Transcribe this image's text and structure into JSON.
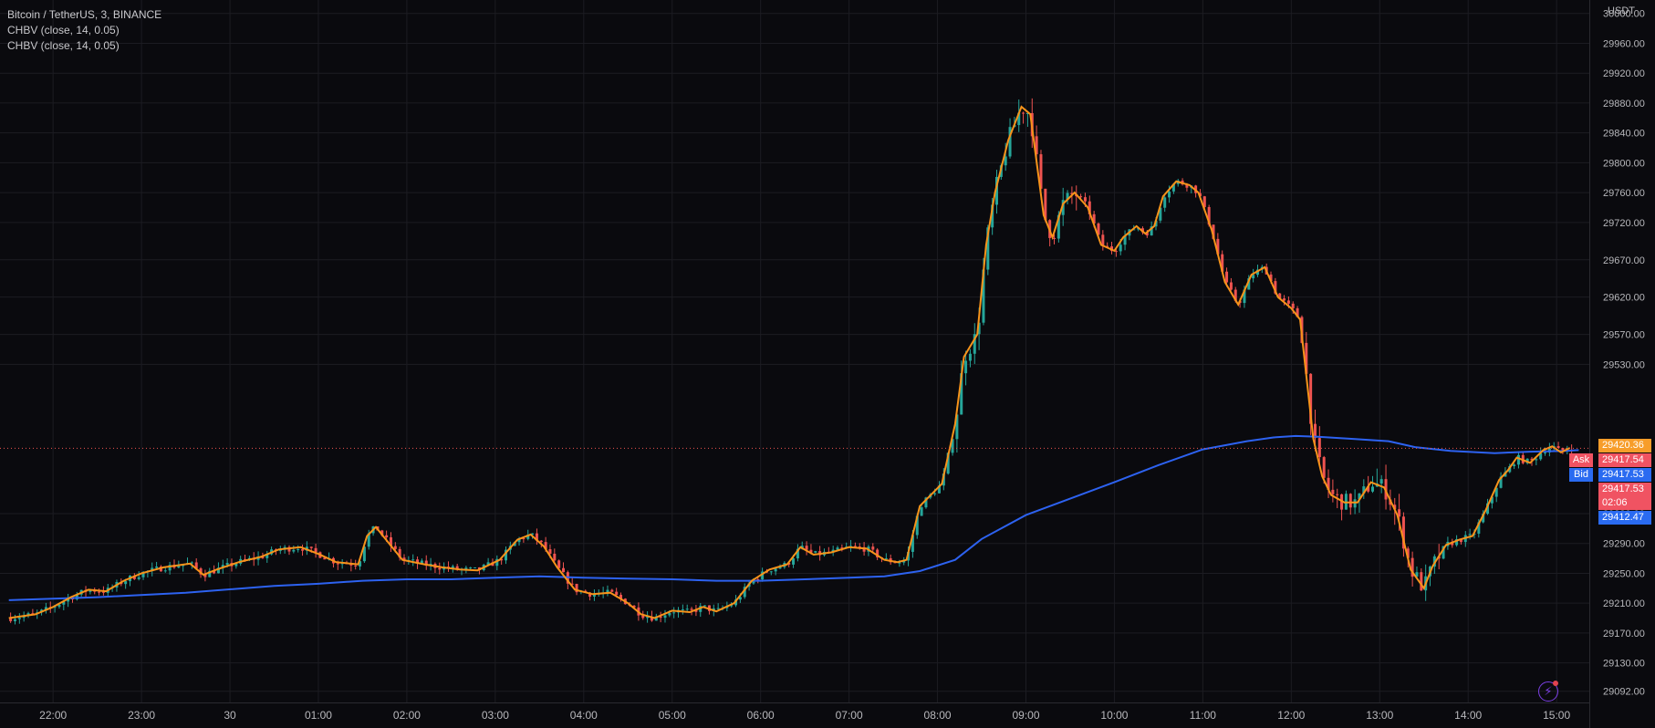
{
  "chart_data": {
    "type": "candlestick",
    "symbol": "Bitcoin / TetherUS, 3, BINANCE",
    "indicators": [
      "CHBV (close, 14, 0.05)",
      "CHBV (close, 14, 0.05)"
    ],
    "currency": "USDT",
    "y_ticks": [
      30000.0,
      29960.0,
      29920.0,
      29880.0,
      29840.0,
      29800.0,
      29760.0,
      29720.0,
      29670.0,
      29620.0,
      29570.0,
      29530.0,
      29330.0,
      29290.0,
      29250.0,
      29210.0,
      29170.0,
      29130.0,
      29092.0
    ],
    "ylim": [
      29077,
      30018
    ],
    "x_ticks": [
      {
        "label": "22:00",
        "t": 0.5
      },
      {
        "label": "23:00",
        "t": 1.5
      },
      {
        "label": "30",
        "t": 2.5
      },
      {
        "label": "01:00",
        "t": 3.5
      },
      {
        "label": "02:00",
        "t": 4.5
      },
      {
        "label": "03:00",
        "t": 5.5
      },
      {
        "label": "04:00",
        "t": 6.5
      },
      {
        "label": "05:00",
        "t": 7.5
      },
      {
        "label": "06:00",
        "t": 8.5
      },
      {
        "label": "07:00",
        "t": 9.5
      },
      {
        "label": "08:00",
        "t": 10.5
      },
      {
        "label": "09:00",
        "t": 11.5
      },
      {
        "label": "10:00",
        "t": 12.5
      },
      {
        "label": "11:00",
        "t": 13.5
      },
      {
        "label": "12:00",
        "t": 14.5
      },
      {
        "label": "13:00",
        "t": 15.5
      },
      {
        "label": "14:00",
        "t": 16.5
      },
      {
        "label": "15:00",
        "t": 17.5
      }
    ],
    "xlim": [
      -0.1,
      17.87
    ],
    "smooth_line": [
      [
        0,
        29190
      ],
      [
        0.3,
        29195
      ],
      [
        0.5,
        29205
      ],
      [
        0.7,
        29218
      ],
      [
        0.9,
        29228
      ],
      [
        1.1,
        29226
      ],
      [
        1.3,
        29240
      ],
      [
        1.5,
        29250
      ],
      [
        1.75,
        29258
      ],
      [
        2.05,
        29263
      ],
      [
        2.2,
        29248
      ],
      [
        2.35,
        29255
      ],
      [
        2.6,
        29265
      ],
      [
        2.85,
        29272
      ],
      [
        3.05,
        29282
      ],
      [
        3.3,
        29285
      ],
      [
        3.5,
        29276
      ],
      [
        3.7,
        29265
      ],
      [
        3.95,
        29262
      ],
      [
        4.05,
        29300
      ],
      [
        4.15,
        29312
      ],
      [
        4.3,
        29290
      ],
      [
        4.45,
        29268
      ],
      [
        4.7,
        29262
      ],
      [
        4.9,
        29258
      ],
      [
        5.1,
        29255
      ],
      [
        5.3,
        29254
      ],
      [
        5.55,
        29268
      ],
      [
        5.75,
        29295
      ],
      [
        5.9,
        29302
      ],
      [
        6.05,
        29286
      ],
      [
        6.2,
        29258
      ],
      [
        6.4,
        29228
      ],
      [
        6.6,
        29222
      ],
      [
        6.8,
        29224
      ],
      [
        7.0,
        29210
      ],
      [
        7.15,
        29195
      ],
      [
        7.3,
        29190
      ],
      [
        7.5,
        29200
      ],
      [
        7.7,
        29198
      ],
      [
        7.85,
        29205
      ],
      [
        8.0,
        29199
      ],
      [
        8.2,
        29210
      ],
      [
        8.4,
        29240
      ],
      [
        8.6,
        29255
      ],
      [
        8.8,
        29262
      ],
      [
        8.95,
        29285
      ],
      [
        9.1,
        29275
      ],
      [
        9.3,
        29278
      ],
      [
        9.5,
        29285
      ],
      [
        9.7,
        29283
      ],
      [
        9.9,
        29268
      ],
      [
        10.05,
        29265
      ],
      [
        10.15,
        29268
      ],
      [
        10.3,
        29340
      ],
      [
        10.55,
        29370
      ],
      [
        10.7,
        29450
      ],
      [
        10.8,
        29540
      ],
      [
        10.95,
        29570
      ],
      [
        11.05,
        29690
      ],
      [
        11.15,
        29760
      ],
      [
        11.3,
        29830
      ],
      [
        11.45,
        29875
      ],
      [
        11.55,
        29865
      ],
      [
        11.7,
        29730
      ],
      [
        11.8,
        29700
      ],
      [
        11.92,
        29745
      ],
      [
        12.05,
        29760
      ],
      [
        12.2,
        29740
      ],
      [
        12.35,
        29690
      ],
      [
        12.5,
        29682
      ],
      [
        12.6,
        29700
      ],
      [
        12.75,
        29715
      ],
      [
        12.85,
        29705
      ],
      [
        12.95,
        29715
      ],
      [
        13.05,
        29755
      ],
      [
        13.2,
        29775
      ],
      [
        13.35,
        29770
      ],
      [
        13.45,
        29760
      ],
      [
        13.6,
        29710
      ],
      [
        13.75,
        29640
      ],
      [
        13.9,
        29610
      ],
      [
        14.05,
        29650
      ],
      [
        14.2,
        29660
      ],
      [
        14.35,
        29620
      ],
      [
        14.5,
        29605
      ],
      [
        14.6,
        29590
      ],
      [
        14.75,
        29430
      ],
      [
        14.85,
        29380
      ],
      [
        14.95,
        29355
      ],
      [
        15.1,
        29345
      ],
      [
        15.25,
        29345
      ],
      [
        15.4,
        29372
      ],
      [
        15.55,
        29365
      ],
      [
        15.7,
        29328
      ],
      [
        15.85,
        29255
      ],
      [
        16.0,
        29230
      ],
      [
        16.1,
        29260
      ],
      [
        16.25,
        29288
      ],
      [
        16.4,
        29295
      ],
      [
        16.55,
        29300
      ],
      [
        16.7,
        29335
      ],
      [
        16.85,
        29375
      ],
      [
        16.95,
        29388
      ],
      [
        17.05,
        29405
      ],
      [
        17.2,
        29398
      ],
      [
        17.35,
        29415
      ],
      [
        17.45,
        29420
      ],
      [
        17.55,
        29412
      ],
      [
        17.65,
        29418
      ]
    ],
    "ma_line": [
      [
        0,
        29214
      ],
      [
        1,
        29218
      ],
      [
        2,
        29224
      ],
      [
        3,
        29233
      ],
      [
        3.5,
        29236
      ],
      [
        4.0,
        29240
      ],
      [
        4.5,
        29242
      ],
      [
        5,
        29242
      ],
      [
        5.5,
        29244
      ],
      [
        6.0,
        29246
      ],
      [
        6.5,
        29244
      ],
      [
        7,
        29243
      ],
      [
        7.5,
        29242
      ],
      [
        8,
        29240
      ],
      [
        8.5,
        29240
      ],
      [
        9,
        29242
      ],
      [
        9.5,
        29244
      ],
      [
        9.9,
        29246
      ],
      [
        10.3,
        29253
      ],
      [
        10.7,
        29268
      ],
      [
        11.0,
        29296
      ],
      [
        11.5,
        29328
      ],
      [
        12.0,
        29350
      ],
      [
        12.5,
        29372
      ],
      [
        13.0,
        29395
      ],
      [
        13.5,
        29416
      ],
      [
        14.0,
        29427
      ],
      [
        14.3,
        29432
      ],
      [
        14.55,
        29434
      ],
      [
        14.8,
        29433
      ],
      [
        15.2,
        29430
      ],
      [
        15.6,
        29427
      ],
      [
        15.9,
        29419
      ],
      [
        16.3,
        29414
      ],
      [
        16.8,
        29411
      ],
      [
        17.2,
        29413
      ],
      [
        17.6,
        29414
      ],
      [
        17.75,
        29415
      ]
    ],
    "last_price": 29417.53,
    "price_labels": [
      {
        "text": "29420.36",
        "value": 29420.36,
        "color": "#f79d2a"
      },
      {
        "text": "29417.54",
        "value": 29417.54,
        "color": "#f05362",
        "side": "Ask"
      },
      {
        "text": "29417.53",
        "value": 29417.53,
        "color": "#2a6bf1",
        "side": "Bid"
      },
      {
        "text": "29417.53",
        "value": 29417.53,
        "color": "#f05362",
        "sub": "02:06"
      },
      {
        "text": "29412.47",
        "value": 29412.47,
        "color": "#2a6bf1"
      }
    ],
    "colors": {
      "up": "#26a69a",
      "down": "#ef5350",
      "smooth": "#f7931a",
      "ma": "#2d62f0",
      "grid": "#1c1c22",
      "price_line": "#ef5350"
    },
    "candle_seed": 7
  }
}
